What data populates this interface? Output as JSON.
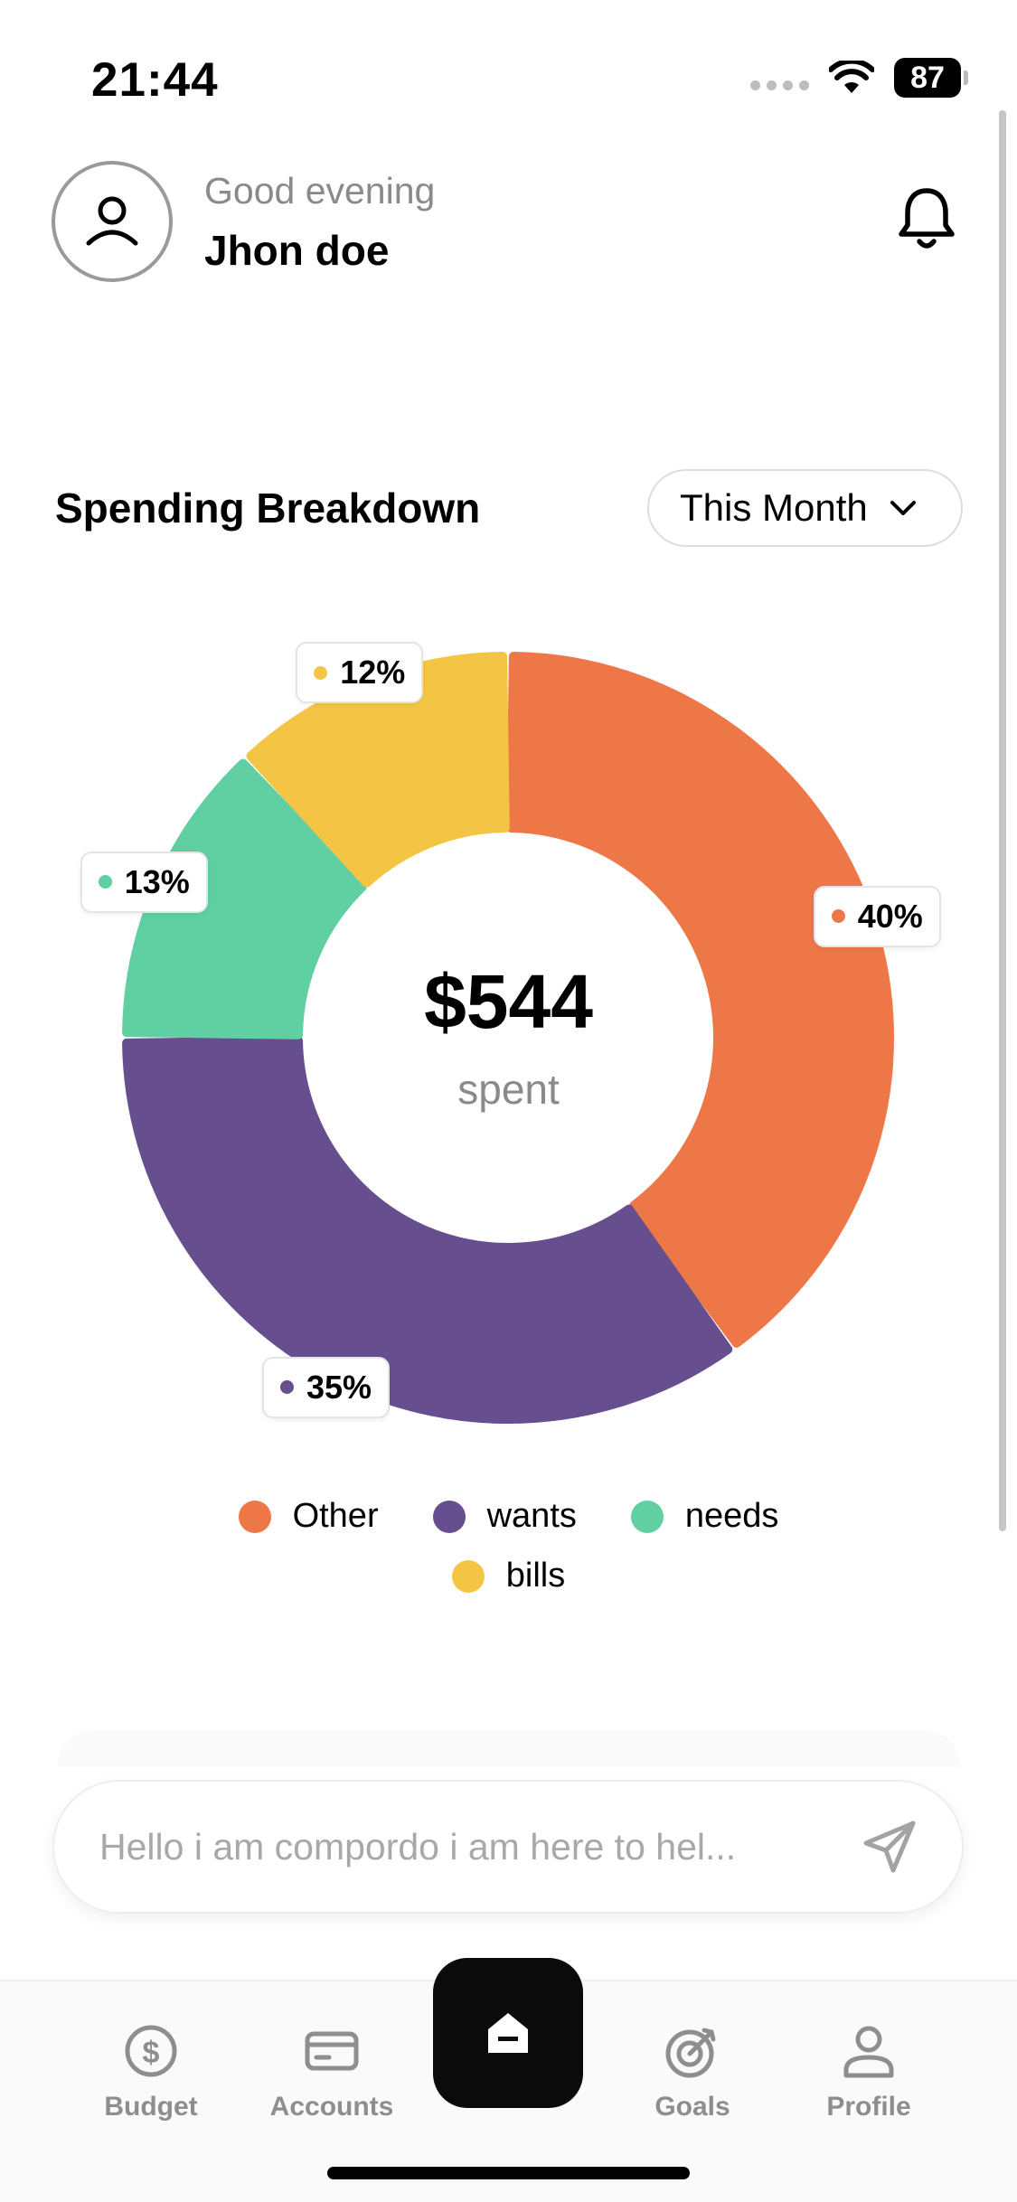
{
  "status_bar": {
    "time": "21:44",
    "battery": "87"
  },
  "header": {
    "greeting": "Good evening",
    "user_name": "Jhon doe"
  },
  "breakdown": {
    "title": "Spending Breakdown",
    "period": "This Month"
  },
  "chart_data": {
    "type": "pie",
    "title": "Spending Breakdown",
    "center_value": "$544",
    "center_label": "spent",
    "slices": [
      {
        "name": "Other",
        "percent": 40,
        "label": "40%",
        "color": "#EE7748"
      },
      {
        "name": "wants",
        "percent": 35,
        "label": "35%",
        "color": "#674E8E"
      },
      {
        "name": "needs",
        "percent": 13,
        "label": "13%",
        "color": "#60CFA2"
      },
      {
        "name": "bills",
        "percent": 12,
        "label": "12%",
        "color": "#F4C545"
      }
    ],
    "legend": [
      "Other",
      "wants",
      "needs",
      "bills"
    ]
  },
  "chat": {
    "placeholder": "Hello i am compordo i am here to hel..."
  },
  "tabs": [
    {
      "label": "Budget"
    },
    {
      "label": "Accounts"
    },
    {
      "label": "Goals"
    },
    {
      "label": "Profile"
    }
  ]
}
